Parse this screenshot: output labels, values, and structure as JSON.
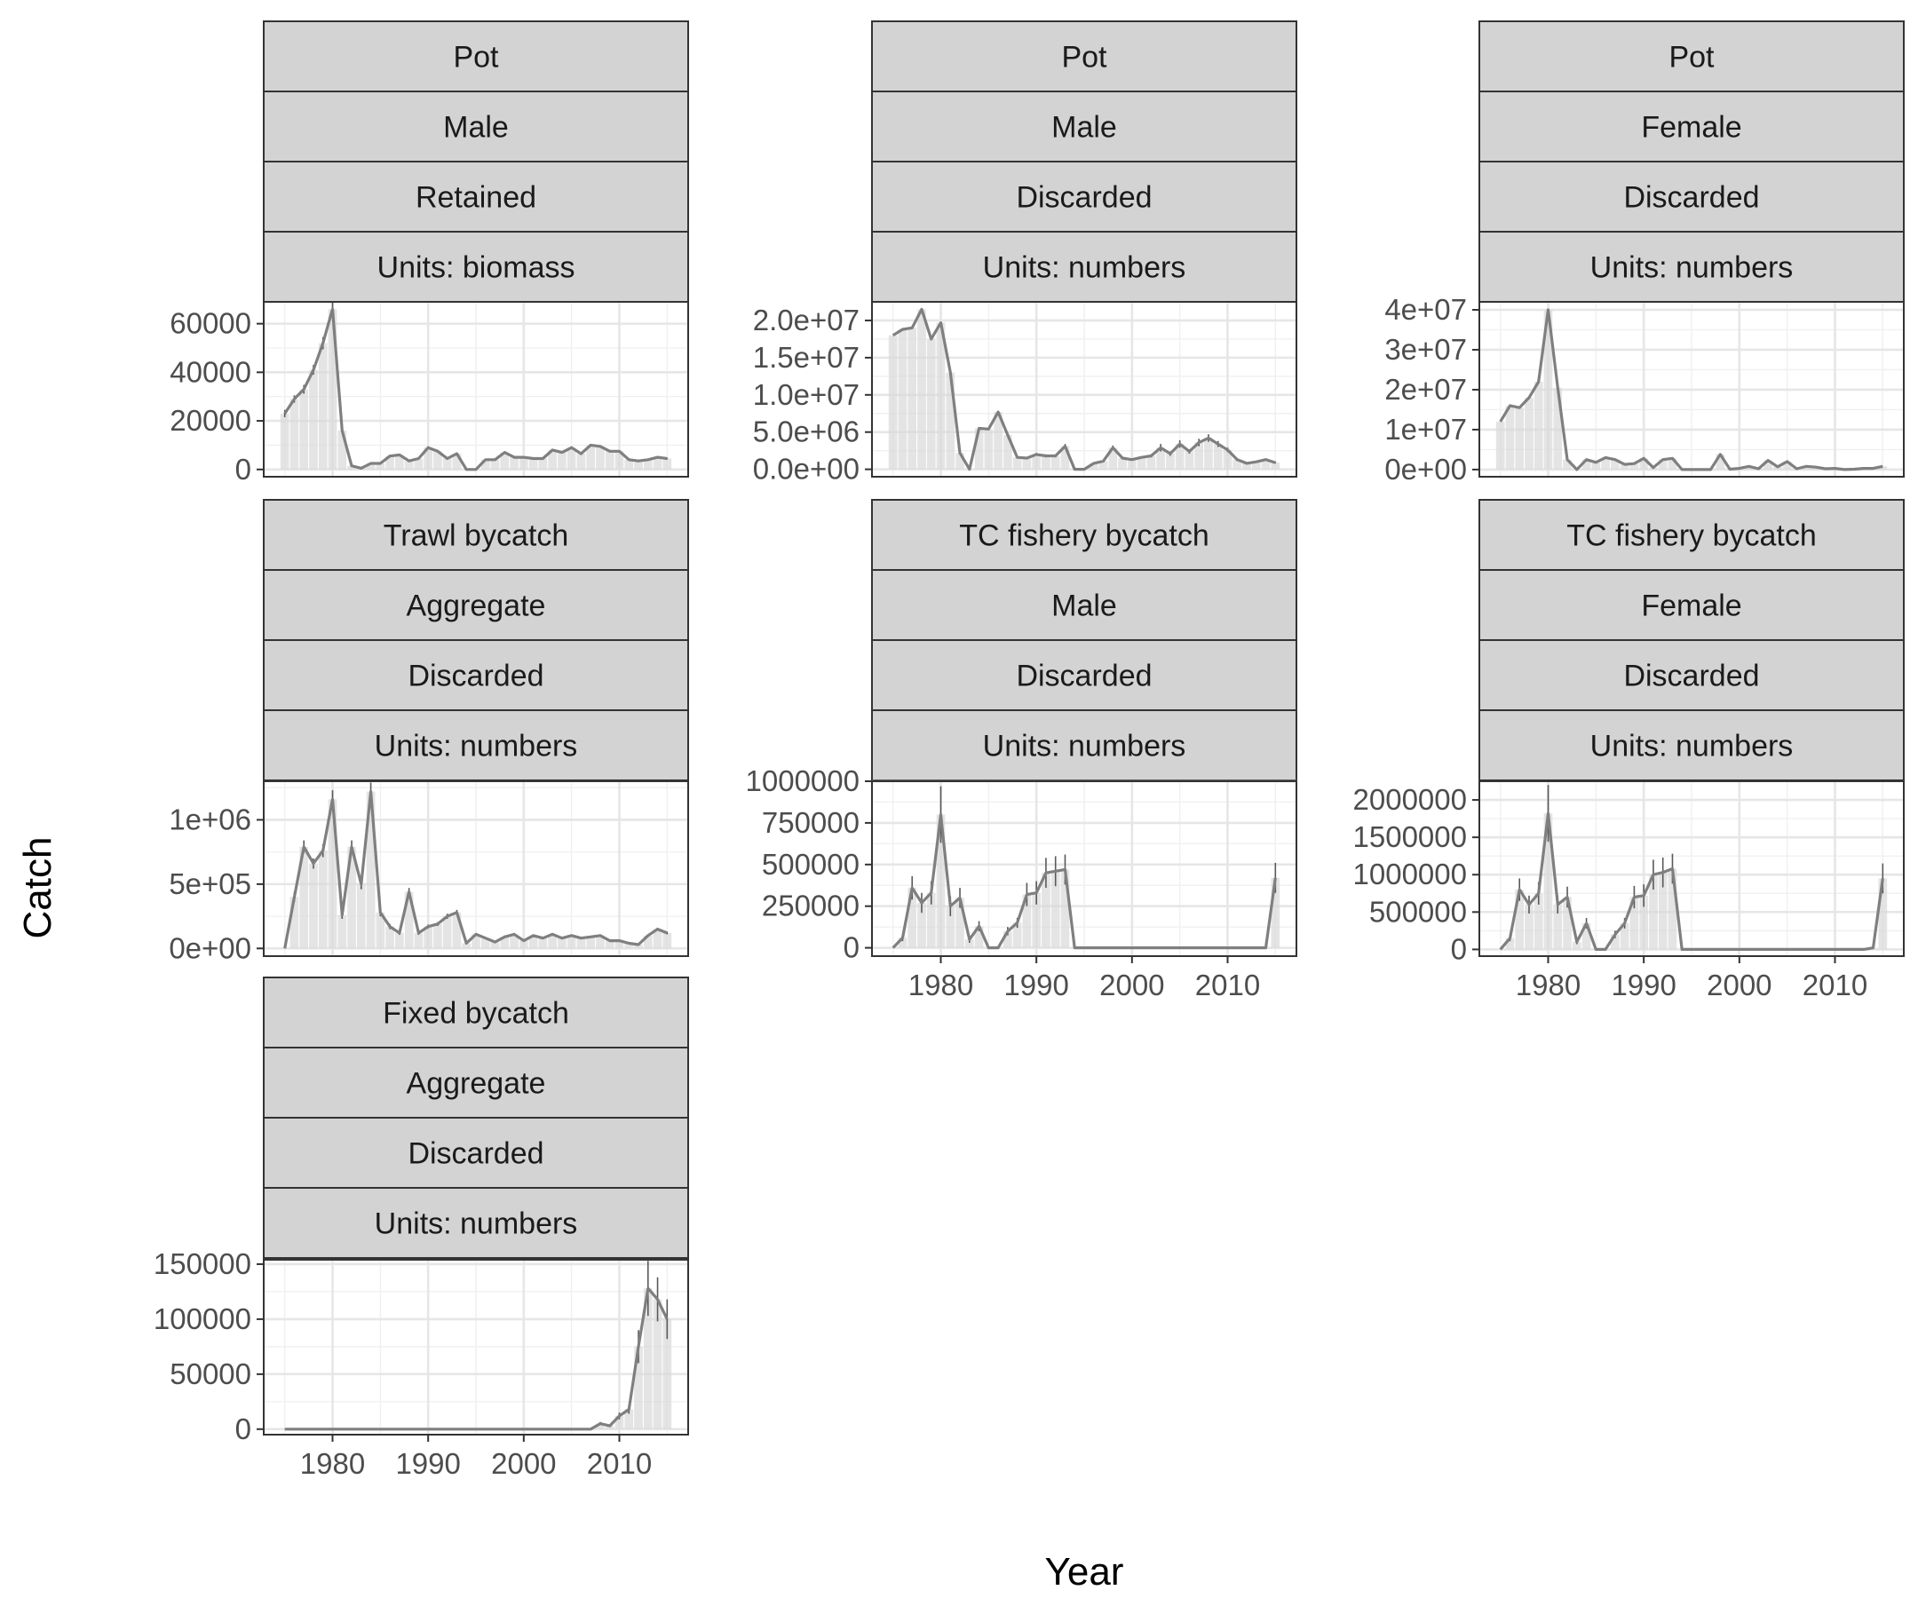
{
  "xlabel": "Year",
  "ylabel": "Catch",
  "chart_data": [
    {
      "type": "line",
      "strips": [
        "Pot",
        "Male",
        "Retained",
        "Units: biomass"
      ],
      "x_ticks": [],
      "y_ticks": [
        0,
        20000,
        40000,
        60000
      ],
      "y_tick_labels": [
        "0",
        "20000",
        "40000",
        "60000"
      ],
      "ylim": [
        -3000,
        69000
      ],
      "xlim": [
        1972.8,
        2017.2
      ],
      "x": [
        1975,
        1976,
        1977,
        1978,
        1979,
        1980,
        1981,
        1982,
        1983,
        1984,
        1985,
        1986,
        1987,
        1988,
        1989,
        1990,
        1991,
        1992,
        1993,
        1994,
        1995,
        1996,
        1997,
        1998,
        1999,
        2000,
        2001,
        2002,
        2003,
        2004,
        2005,
        2006,
        2007,
        2008,
        2009,
        2010,
        2011,
        2012,
        2013,
        2014,
        2015
      ],
      "y": [
        23000,
        29000,
        33000,
        41000,
        52000,
        66000,
        16000,
        1500,
        500,
        2500,
        2500,
        5500,
        6000,
        3500,
        4500,
        9000,
        7500,
        4500,
        6500,
        0,
        0,
        4000,
        4000,
        7000,
        5000,
        5000,
        4500,
        4500,
        8000,
        7000,
        9000,
        6500,
        10000,
        9500,
        7500,
        7500,
        4000,
        3500,
        4000,
        5000,
        4500
      ],
      "err": [
        1500,
        1500,
        1800,
        2000,
        2500,
        3000,
        1200,
        300,
        200,
        300,
        300,
        400,
        400,
        300,
        300,
        500,
        400,
        300,
        400,
        0,
        0,
        300,
        300,
        400,
        300,
        300,
        300,
        300,
        400,
        400,
        500,
        400,
        500,
        500,
        400,
        400,
        300,
        300,
        300,
        300,
        300
      ]
    },
    {
      "type": "line",
      "strips": [
        "Pot",
        "Male",
        "Discarded",
        "Units: numbers"
      ],
      "x_ticks": [],
      "y_ticks": [
        0,
        5000000,
        10000000,
        15000000,
        20000000
      ],
      "y_tick_labels": [
        "0.0e+00",
        "5.0e+06",
        "1.0e+07",
        "1.5e+07",
        "2.0e+07"
      ],
      "ylim": [
        -1000000,
        22500000
      ],
      "xlim": [
        1972.8,
        2017.2
      ],
      "x": [
        1975,
        1976,
        1977,
        1978,
        1979,
        1980,
        1981,
        1982,
        1983,
        1984,
        1985,
        1986,
        1987,
        1988,
        1989,
        1990,
        1991,
        1992,
        1993,
        1994,
        1995,
        1996,
        1997,
        1998,
        1999,
        2000,
        2001,
        2002,
        2003,
        2004,
        2005,
        2006,
        2007,
        2008,
        2009,
        2010,
        2011,
        2012,
        2013,
        2014,
        2015
      ],
      "y": [
        18000000,
        18800000,
        19000000,
        21500000,
        17500000,
        19700000,
        13000000,
        2200000,
        0,
        5500000,
        5400000,
        7700000,
        4600000,
        1600000,
        1500000,
        2000000,
        1800000,
        1800000,
        3100000,
        0,
        0,
        800000,
        1100000,
        2900000,
        1500000,
        1300000,
        1600000,
        1800000,
        2900000,
        2100000,
        3400000,
        2400000,
        3600000,
        4200000,
        3400000,
        2600000,
        1300000,
        800000,
        1000000,
        1300000,
        900000
      ],
      "err": [
        0,
        0,
        0,
        0,
        0,
        0,
        0,
        0,
        0,
        0,
        0,
        0,
        0,
        0,
        0,
        200000,
        200000,
        200000,
        300000,
        0,
        0,
        100000,
        100000,
        300000,
        150000,
        150000,
        150000,
        200000,
        500000,
        300000,
        500000,
        300000,
        500000,
        500000,
        400000,
        300000,
        200000,
        100000,
        100000,
        150000,
        100000
      ]
    },
    {
      "type": "line",
      "strips": [
        "Pot",
        "Female",
        "Discarded",
        "Units: numbers"
      ],
      "x_ticks": [],
      "y_ticks": [
        0,
        10000000,
        20000000,
        30000000,
        40000000
      ],
      "y_tick_labels": [
        "0e+00",
        "1e+07",
        "2e+07",
        "3e+07",
        "4e+07"
      ],
      "ylim": [
        -1800000,
        42000000
      ],
      "xlim": [
        1972.8,
        2017.2
      ],
      "x": [
        1975,
        1976,
        1977,
        1978,
        1979,
        1980,
        1981,
        1982,
        1983,
        1984,
        1985,
        1986,
        1987,
        1988,
        1989,
        1990,
        1991,
        1992,
        1993,
        1994,
        1995,
        1996,
        1997,
        1998,
        1999,
        2000,
        2001,
        2002,
        2003,
        2004,
        2005,
        2006,
        2007,
        2008,
        2009,
        2010,
        2011,
        2012,
        2013,
        2014,
        2015
      ],
      "y": [
        12000000,
        16000000,
        15500000,
        18000000,
        22000000,
        40000000,
        20500000,
        2500000,
        0,
        2500000,
        1800000,
        3000000,
        2500000,
        1300000,
        1500000,
        2800000,
        500000,
        2500000,
        2800000,
        0,
        0,
        0,
        0,
        3800000,
        100000,
        300000,
        800000,
        200000,
        2300000,
        700000,
        2000000,
        200000,
        800000,
        600000,
        200000,
        300000,
        0,
        100000,
        300000,
        300000,
        800000
      ],
      "err": [
        0,
        0,
        0,
        0,
        0,
        0,
        0,
        0,
        0,
        0,
        0,
        0,
        0,
        0,
        0,
        0,
        0,
        0,
        0,
        0,
        0,
        0,
        0,
        0,
        0,
        0,
        0,
        0,
        0,
        0,
        0,
        0,
        0,
        0,
        0,
        0,
        0,
        0,
        0,
        0,
        0
      ]
    },
    {
      "type": "line",
      "strips": [
        "Trawl bycatch",
        "Aggregate",
        "Discarded",
        "Units: numbers"
      ],
      "x_ticks": [],
      "y_ticks": [
        0,
        500000,
        1000000
      ],
      "y_tick_labels": [
        "0e+00",
        "5e+05",
        "1e+06"
      ],
      "ylim": [
        -60000,
        1300000
      ],
      "xlim": [
        1972.8,
        2017.2
      ],
      "x": [
        1975,
        1976,
        1977,
        1978,
        1979,
        1980,
        1981,
        1982,
        1983,
        1984,
        1985,
        1986,
        1987,
        1988,
        1989,
        1990,
        1991,
        1992,
        1993,
        1994,
        1995,
        1996,
        1997,
        1998,
        1999,
        2000,
        2001,
        2002,
        2003,
        2004,
        2005,
        2006,
        2007,
        2008,
        2009,
        2010,
        2011,
        2012,
        2013,
        2014,
        2015
      ],
      "y": [
        0,
        400000,
        790000,
        660000,
        760000,
        1160000,
        260000,
        790000,
        500000,
        1220000,
        280000,
        170000,
        120000,
        440000,
        120000,
        170000,
        190000,
        250000,
        280000,
        40000,
        110000,
        80000,
        50000,
        90000,
        110000,
        60000,
        100000,
        80000,
        110000,
        80000,
        100000,
        80000,
        90000,
        100000,
        60000,
        60000,
        40000,
        30000,
        100000,
        150000,
        120000
      ],
      "err": [
        0,
        40000,
        50000,
        40000,
        50000,
        70000,
        30000,
        50000,
        40000,
        70000,
        30000,
        20000,
        15000,
        30000,
        15000,
        15000,
        15000,
        20000,
        20000,
        5000,
        10000,
        8000,
        5000,
        8000,
        10000,
        6000,
        8000,
        8000,
        10000,
        8000,
        8000,
        8000,
        8000,
        8000,
        6000,
        6000,
        4000,
        4000,
        8000,
        10000,
        10000
      ]
    },
    {
      "type": "line",
      "strips": [
        "TC fishery bycatch",
        "Male",
        "Discarded",
        "Units: numbers"
      ],
      "x_ticks": [
        1980,
        1990,
        2000,
        2010
      ],
      "y_ticks": [
        0,
        250000,
        500000,
        750000,
        1000000
      ],
      "y_tick_labels": [
        "0",
        "250000",
        "500000",
        "750000",
        "1000000"
      ],
      "ylim": [
        -50000,
        1000000
      ],
      "xlim": [
        1972.8,
        2017.2
      ],
      "x": [
        1975,
        1976,
        1977,
        1978,
        1979,
        1980,
        1981,
        1982,
        1983,
        1984,
        1985,
        1986,
        1987,
        1988,
        1989,
        1990,
        1991,
        1992,
        1993,
        1994,
        1995,
        1996,
        1997,
        1998,
        1999,
        2000,
        2001,
        2002,
        2003,
        2004,
        2005,
        2006,
        2007,
        2008,
        2009,
        2010,
        2011,
        2012,
        2013,
        2014,
        2015
      ],
      "y": [
        0,
        60000,
        360000,
        270000,
        330000,
        800000,
        250000,
        300000,
        50000,
        130000,
        0,
        0,
        100000,
        150000,
        320000,
        330000,
        450000,
        460000,
        470000,
        0,
        0,
        0,
        0,
        0,
        0,
        0,
        0,
        0,
        0,
        0,
        0,
        0,
        0,
        0,
        0,
        0,
        0,
        0,
        0,
        0,
        420000
      ],
      "err": [
        0,
        20000,
        70000,
        60000,
        70000,
        170000,
        60000,
        60000,
        20000,
        30000,
        0,
        0,
        25000,
        30000,
        70000,
        70000,
        90000,
        90000,
        90000,
        0,
        0,
        0,
        0,
        0,
        0,
        0,
        0,
        0,
        0,
        0,
        0,
        0,
        0,
        0,
        0,
        0,
        0,
        0,
        0,
        0,
        90000
      ]
    },
    {
      "type": "line",
      "strips": [
        "TC fishery bycatch",
        "Female",
        "Discarded",
        "Units: numbers"
      ],
      "x_ticks": [
        1980,
        1990,
        2000,
        2010
      ],
      "y_ticks": [
        0,
        500000,
        1000000,
        1500000,
        2000000
      ],
      "y_tick_labels": [
        "0",
        "500000",
        "1000000",
        "1500000",
        "2000000"
      ],
      "ylim": [
        -90000,
        2250000
      ],
      "xlim": [
        1972.8,
        2017.2
      ],
      "x": [
        1975,
        1976,
        1977,
        1978,
        1979,
        1980,
        1981,
        1982,
        1983,
        1984,
        1985,
        1986,
        1987,
        1988,
        1989,
        1990,
        1991,
        1992,
        1993,
        1994,
        1995,
        1996,
        1997,
        1998,
        1999,
        2000,
        2001,
        2002,
        2003,
        2004,
        2005,
        2006,
        2007,
        2008,
        2009,
        2010,
        2011,
        2012,
        2013,
        2014,
        2015
      ],
      "y": [
        0,
        150000,
        800000,
        600000,
        750000,
        1820000,
        600000,
        700000,
        100000,
        350000,
        0,
        0,
        200000,
        350000,
        700000,
        720000,
        1000000,
        1030000,
        1080000,
        0,
        0,
        0,
        0,
        0,
        0,
        0,
        0,
        0,
        0,
        0,
        0,
        0,
        0,
        0,
        0,
        0,
        0,
        0,
        0,
        20000,
        950000
      ],
      "err": [
        0,
        40000,
        150000,
        120000,
        150000,
        380000,
        120000,
        140000,
        30000,
        70000,
        0,
        0,
        50000,
        70000,
        150000,
        150000,
        200000,
        200000,
        200000,
        0,
        0,
        0,
        0,
        0,
        0,
        0,
        0,
        0,
        0,
        0,
        0,
        0,
        0,
        0,
        0,
        0,
        0,
        0,
        0,
        5000,
        200000
      ]
    },
    {
      "type": "line",
      "strips": [
        "Fixed bycatch",
        "Aggregate",
        "Discarded",
        "Units: numbers"
      ],
      "x_ticks": [
        1980,
        1990,
        2000,
        2010
      ],
      "y_ticks": [
        0,
        50000,
        100000,
        150000
      ],
      "y_tick_labels": [
        "0",
        "50000",
        "100000",
        "150000"
      ],
      "ylim": [
        -5000,
        154000
      ],
      "xlim": [
        1972.8,
        2017.2
      ],
      "x": [
        1975,
        1976,
        1977,
        1978,
        1979,
        1980,
        1981,
        1982,
        1983,
        1984,
        1985,
        1986,
        1987,
        1988,
        1989,
        1990,
        1991,
        1992,
        1993,
        1994,
        1995,
        1996,
        1997,
        1998,
        1999,
        2000,
        2001,
        2002,
        2003,
        2004,
        2005,
        2006,
        2007,
        2008,
        2009,
        2010,
        2011,
        2012,
        2013,
        2014,
        2015
      ],
      "y": [
        0,
        0,
        0,
        0,
        0,
        0,
        0,
        0,
        0,
        0,
        0,
        0,
        0,
        0,
        0,
        0,
        0,
        0,
        0,
        0,
        0,
        0,
        0,
        0,
        0,
        0,
        0,
        0,
        0,
        0,
        0,
        0,
        0,
        5000,
        3000,
        12000,
        18000,
        75000,
        128000,
        118000,
        100000
      ],
      "err": [
        0,
        0,
        0,
        0,
        0,
        0,
        0,
        0,
        0,
        0,
        0,
        0,
        0,
        0,
        0,
        0,
        0,
        0,
        0,
        0,
        0,
        0,
        0,
        0,
        0,
        0,
        0,
        0,
        0,
        0,
        0,
        0,
        0,
        1500,
        1000,
        3000,
        4000,
        15000,
        25000,
        20000,
        18000
      ]
    }
  ]
}
